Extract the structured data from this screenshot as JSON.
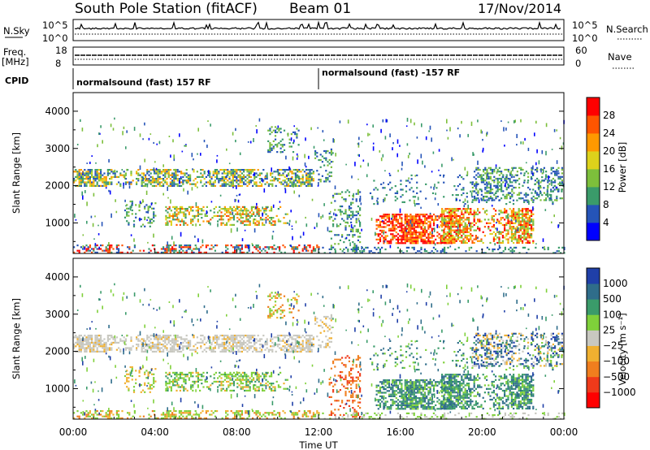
{
  "header": {
    "title": "South Pole Station (fitACF)",
    "beam": "Beam 01",
    "date": "17/Nov/2014"
  },
  "status_panels": {
    "nsky_label": "N.Sky",
    "nsky_ticks": [
      "10^5",
      "10^0"
    ],
    "nsearch_label": "N.Search",
    "nsearch_ticks": [
      "10^5",
      "10^0"
    ],
    "freq_label": "Freq.",
    "freq_unit": "[MHz]",
    "freq_ticks": [
      "18",
      "8"
    ],
    "nave_label": "Nave",
    "nave_ticks": [
      "60",
      "0"
    ],
    "cpid_label": "CPID",
    "cpid_segments": [
      {
        "label": "normalsound (fast) 157 RF",
        "start_hour": 0
      },
      {
        "label": "normalsound (fast) -157 RF",
        "start_hour": 12
      }
    ]
  },
  "chart_data": [
    {
      "type": "heatmap",
      "name": "power-panel",
      "xlabel": "",
      "ylabel": "Slant Range [km]",
      "x_range_hours": [
        0,
        24
      ],
      "y_range_km": [
        180,
        4500
      ],
      "y_ticks": [
        1000,
        2000,
        3000,
        4000
      ],
      "colorbar": {
        "label": "Power [dB]",
        "ticks": [
          "4",
          "8",
          "12",
          "16",
          "20",
          "24",
          "28"
        ],
        "colors": [
          "#0000ff",
          "#2554b8",
          "#3a9b6a",
          "#7dbf3b",
          "#ddd21b",
          "#ff9900",
          "#ff5500",
          "#ff0000"
        ]
      }
    },
    {
      "type": "heatmap",
      "name": "velocity-panel",
      "xlabel": "Time UT",
      "ylabel": "Slant Range [km]",
      "x_range_hours": [
        0,
        24
      ],
      "y_range_km": [
        180,
        4500
      ],
      "y_ticks": [
        1000,
        2000,
        3000,
        4000
      ],
      "x_tick_labels": [
        "00:00",
        "04:00",
        "08:00",
        "12:00",
        "16:00",
        "20:00",
        "00:00"
      ],
      "colorbar": {
        "label": "Velocity [m s⁻¹]",
        "ticks": [
          "1000",
          "500",
          "100",
          "25",
          "−25",
          "−100",
          "−500",
          "−1000"
        ],
        "colors": [
          "#1f3fa8",
          "#2f6d8a",
          "#3a9b6a",
          "#7fd03a",
          "#c8c8c0",
          "#f0b030",
          "#f07e1e",
          "#ef3a1a",
          "#ff0000"
        ]
      }
    }
  ]
}
